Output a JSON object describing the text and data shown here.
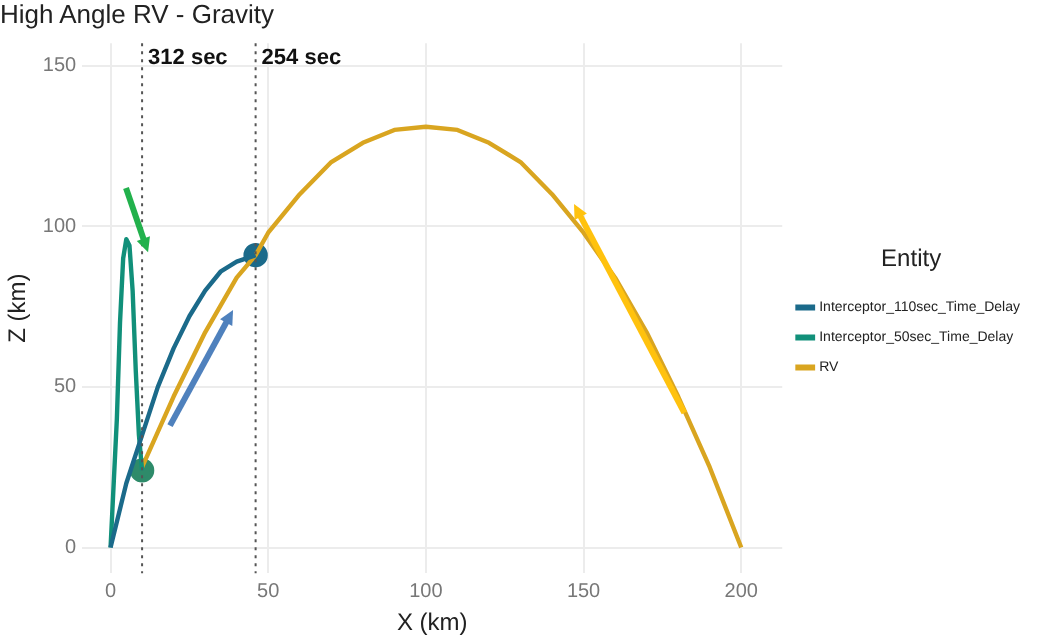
{
  "chart_data": {
    "type": "line",
    "title": "High Angle RV - Gravity",
    "xlabel": "X (km)",
    "ylabel": "Z (km)",
    "legend_title": "Entity",
    "legend": "right",
    "grid": true,
    "marker": "none",
    "line_style": "solid",
    "xlim": [
      -9,
      213
    ],
    "xticks": [
      0,
      50,
      100,
      150,
      200
    ],
    "ylim": [
      -8,
      157
    ],
    "yticks": [
      0,
      50,
      100,
      150
    ],
    "series": [
      {
        "name": "Interceptor_110sec_Time_Delay",
        "color": "#1b6a8a",
        "x": [
          0,
          5,
          10,
          15,
          20,
          25,
          30,
          35,
          40,
          46
        ],
        "values": [
          0,
          20,
          35,
          50,
          62,
          72,
          80,
          86,
          89,
          91
        ]
      },
      {
        "name": "Interceptor_50sec_Time_Delay",
        "color": "#11907a",
        "x": [
          0,
          2,
          3,
          4,
          5,
          6,
          7,
          8,
          9,
          10
        ],
        "values": [
          0,
          40,
          70,
          90,
          96,
          94,
          80,
          55,
          35,
          24
        ]
      },
      {
        "name": "RV",
        "color": "#d9a520",
        "x": [
          10,
          20,
          30,
          40,
          46,
          50,
          60,
          70,
          80,
          90,
          100,
          110,
          120,
          130,
          140,
          150,
          160,
          170,
          180,
          190,
          200
        ],
        "values": [
          25,
          47,
          67,
          84,
          91,
          98,
          110,
          120,
          126,
          130,
          131,
          130,
          126,
          120,
          110,
          98,
          84,
          67,
          47,
          25,
          0
        ]
      },
      {
        "type": "scatter",
        "marker": "circle",
        "color": "#1b6a8a",
        "x": [
          46
        ],
        "values": [
          91
        ]
      },
      {
        "type": "scatter",
        "marker": "circle",
        "color": "#2e8b6a",
        "x": [
          10
        ],
        "values": [
          24
        ]
      }
    ],
    "ref_lines": [
      {
        "axis": "x",
        "value": 10,
        "label": "312 sec",
        "line_style": "dotted",
        "color": "#555555"
      },
      {
        "axis": "x",
        "value": 46,
        "label": "254 sec",
        "line_style": "dotted",
        "color": "#555555"
      }
    ]
  }
}
